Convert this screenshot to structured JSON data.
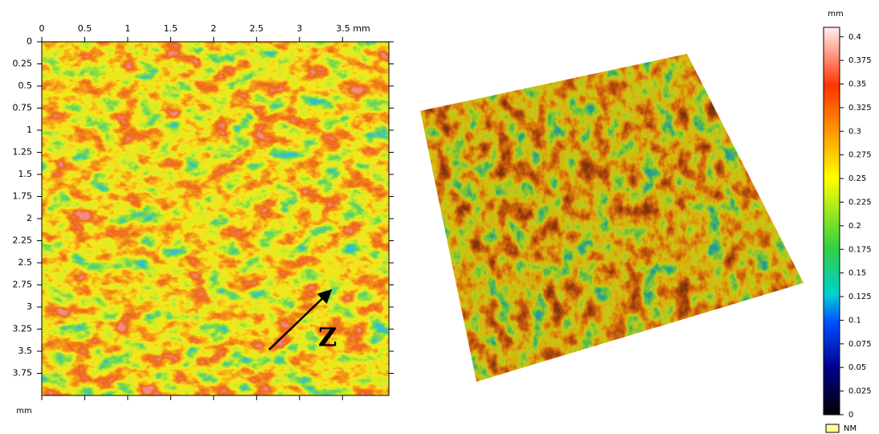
{
  "map": {
    "x_unit": "mm",
    "y_unit": "mm",
    "xlim": [
      0,
      4.04
    ],
    "xticks": [
      0,
      0.5,
      1,
      1.5,
      2,
      2.5,
      3,
      {
        "value": 3.5,
        "label": "3.5 mm"
      }
    ],
    "ylim": [
      0,
      4
    ],
    "yticks": [
      0,
      0.25,
      0.5,
      0.75,
      1,
      1.25,
      1.5,
      1.75,
      2,
      2.25,
      2.5,
      2.75,
      3,
      3.25,
      3.5,
      3.75
    ]
  },
  "annotation": "Z",
  "colorbar": {
    "unit": "mm",
    "lim": [
      0,
      0.41
    ],
    "ticks": [
      0,
      0.025,
      0.05,
      0.075,
      0.1,
      0.125,
      0.15,
      0.175,
      0.2,
      0.225,
      0.25,
      0.275,
      0.3,
      0.325,
      0.35,
      0.375,
      0.4
    ],
    "legend": "NM"
  }
}
